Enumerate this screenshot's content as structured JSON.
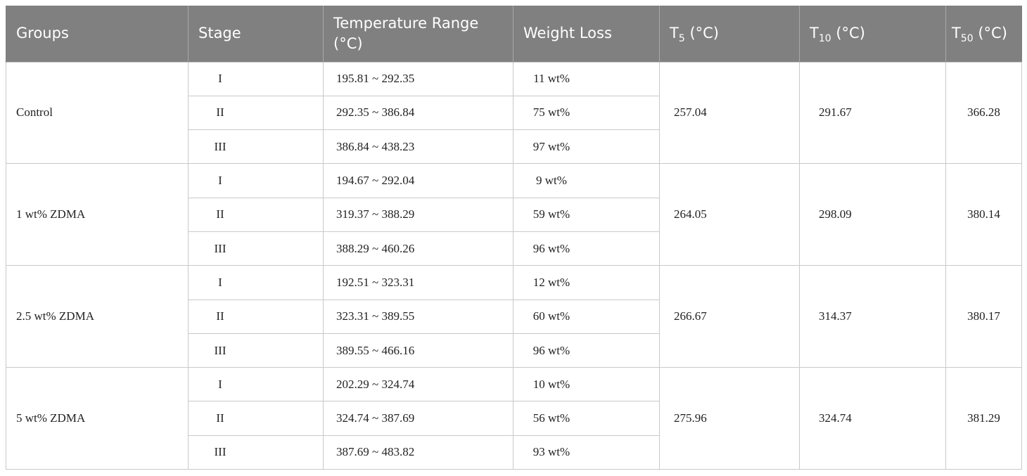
{
  "table": {
    "header": {
      "groups": "Groups",
      "stage": "Stage",
      "range": "Temperature Range (°C)",
      "loss": "Weight Loss",
      "t5": {
        "symbol": "T",
        "subscript": "5",
        "unit": "(°C)"
      },
      "t10": {
        "symbol": "T",
        "subscript": "10",
        "unit": "(°C)"
      },
      "t50": {
        "symbol": "T",
        "subscript": "50",
        "unit": "(°C)"
      }
    },
    "groups": [
      {
        "name": "Control",
        "t5": "257.04",
        "t10": "291.67",
        "t50": "366.28",
        "stages": [
          {
            "stage": "I",
            "range": "195.81 ~ 292.35",
            "loss": "11 wt%"
          },
          {
            "stage": "II",
            "range": "292.35 ~ 386.84",
            "loss": "75 wt%"
          },
          {
            "stage": "III",
            "range": "386.84 ~ 438.23",
            "loss": "97 wt%"
          }
        ]
      },
      {
        "name": "1 wt% ZDMA",
        "t5": "264.05",
        "t10": "298.09",
        "t50": "380.14",
        "stages": [
          {
            "stage": "I",
            "range": "194.67 ~ 292.04",
            "loss": "9 wt%"
          },
          {
            "stage": "II",
            "range": "319.37 ~ 388.29",
            "loss": "59 wt%"
          },
          {
            "stage": "III",
            "range": "388.29 ~ 460.26",
            "loss": "96 wt%"
          }
        ]
      },
      {
        "name": "2.5 wt% ZDMA",
        "t5": "266.67",
        "t10": "314.37",
        "t50": "380.17",
        "stages": [
          {
            "stage": "I",
            "range": "192.51 ~ 323.31",
            "loss": "12 wt%"
          },
          {
            "stage": "II",
            "range": "323.31 ~ 389.55",
            "loss": "60 wt%"
          },
          {
            "stage": "III",
            "range": "389.55 ~ 466.16",
            "loss": "96 wt%"
          }
        ]
      },
      {
        "name": "5 wt% ZDMA",
        "t5": "275.96",
        "t10": "324.74",
        "t50": "381.29",
        "stages": [
          {
            "stage": "I",
            "range": "202.29 ~ 324.74",
            "loss": "10 wt%"
          },
          {
            "stage": "II",
            "range": "324.74 ~ 387.69",
            "loss": "56 wt%"
          },
          {
            "stage": "III",
            "range": "387.69 ~ 483.82",
            "loss": "93 wt%"
          }
        ]
      }
    ]
  }
}
